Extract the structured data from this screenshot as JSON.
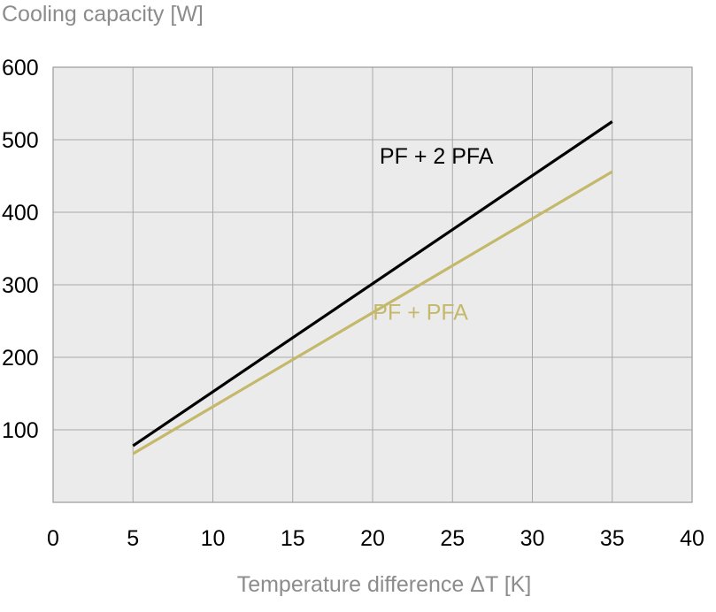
{
  "chart_data": {
    "type": "line",
    "title": "",
    "ylabel": "Cooling capacity [W]",
    "xlabel": "Temperature difference ΔT [K]",
    "xlim": [
      0,
      40
    ],
    "ylim": [
      0,
      600
    ],
    "xticks": [
      0,
      5,
      10,
      15,
      20,
      25,
      30,
      35,
      40
    ],
    "yticks": [
      100,
      200,
      300,
      400,
      500,
      600
    ],
    "grid": true,
    "series": [
      {
        "name": "PF + 2 PFA",
        "color": "#000000",
        "x": [
          5,
          35
        ],
        "y": [
          78,
          525
        ],
        "label_anchor": [
          24,
          467
        ]
      },
      {
        "name": "PF + PFA",
        "color": "#c4b86a",
        "x": [
          5,
          35
        ],
        "y": [
          67,
          456
        ],
        "label_anchor": [
          23,
          252
        ]
      }
    ]
  }
}
